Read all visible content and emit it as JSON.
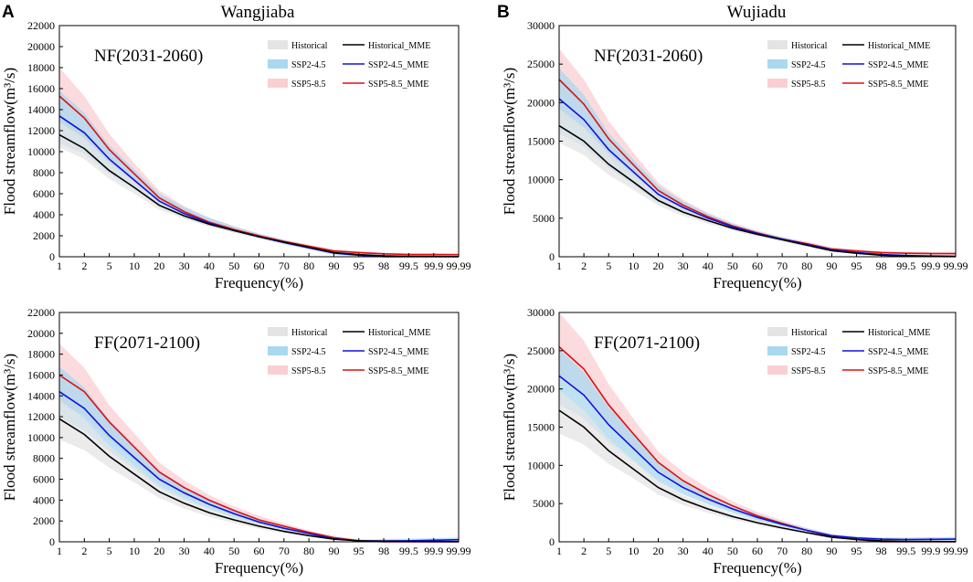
{
  "figure": {
    "panel_letters": [
      "A",
      "B"
    ],
    "stations": [
      "Wangjiaba",
      "Wujiadu"
    ]
  },
  "legend": {
    "band_labels": [
      "Historical",
      "SSP2-4.5",
      "SSP5-8.5"
    ],
    "line_labels": [
      "Historical_MME",
      "SSP2-4.5_MME",
      "SSP5-8.5_MME"
    ]
  },
  "colors": {
    "historical_band": "#e4e4e4",
    "ssp245_band": "#a9d8ef",
    "ssp585_band": "#f9cfd3",
    "historical_line": "#000000",
    "ssp245_line": "#1010dd",
    "ssp585_line": "#dd1010"
  },
  "chart_data": [
    {
      "type": "line",
      "id": "wangjiaba-nf",
      "station": "Wangjiaba",
      "period_label": "NF(2031-2060)",
      "xlabel": "Frequency(%)",
      "ylabel": "Flood streamflow(m³/s)",
      "x_ticks": [
        "1",
        "2",
        "5",
        "10",
        "20",
        "30",
        "40",
        "50",
        "60",
        "70",
        "80",
        "90",
        "95",
        "98",
        "99.5",
        "99.9",
        "99.99"
      ],
      "x": [
        1,
        2,
        5,
        10,
        20,
        30,
        40,
        50,
        60,
        70,
        80,
        90,
        95,
        98,
        99.5,
        99.9,
        99.99
      ],
      "ylim": [
        0,
        22000
      ],
      "y_ticks": [
        0,
        2000,
        4000,
        6000,
        8000,
        10000,
        12000,
        14000,
        16000,
        18000,
        20000,
        22000
      ],
      "series": [
        {
          "name": "Historical_MME",
          "band": "Historical",
          "values": [
            11600,
            10300,
            8200,
            6600,
            4900,
            3900,
            3100,
            2500,
            1900,
            1400,
            900,
            400,
            200,
            80,
            40,
            30,
            20
          ],
          "band_lower": [
            10400,
            9300,
            7400,
            6000,
            4500,
            3600,
            2900,
            2300,
            1700,
            1250,
            800,
            330,
            160,
            60,
            30,
            20,
            10
          ],
          "band_upper": [
            12800,
            11300,
            9000,
            7200,
            5300,
            4200,
            3300,
            2700,
            2100,
            1550,
            1000,
            470,
            250,
            110,
            60,
            45,
            35
          ]
        },
        {
          "name": "SSP2-4.5_MME",
          "band": "SSP2-4.5",
          "values": [
            13400,
            11800,
            9300,
            7300,
            5300,
            4100,
            3200,
            2500,
            1900,
            1350,
            850,
            350,
            150,
            0,
            0,
            0,
            0
          ],
          "band_lower": [
            10800,
            9800,
            7900,
            6400,
            4800,
            3700,
            2900,
            2300,
            1700,
            1200,
            700,
            200,
            60,
            0,
            0,
            0,
            0
          ],
          "band_upper": [
            15800,
            13700,
            10600,
            8300,
            6000,
            4700,
            3700,
            2900,
            2200,
            1600,
            1050,
            550,
            320,
            180,
            120,
            100,
            80
          ]
        },
        {
          "name": "SSP5-8.5_MME",
          "band": "SSP5-8.5",
          "values": [
            15300,
            13200,
            10200,
            7900,
            5600,
            4300,
            3300,
            2600,
            2000,
            1450,
            1000,
            550,
            400,
            280,
            220,
            210,
            200
          ],
          "band_lower": [
            12400,
            11000,
            8700,
            6900,
            5000,
            3900,
            3000,
            2400,
            1800,
            1300,
            850,
            420,
            280,
            170,
            120,
            110,
            100
          ],
          "band_upper": [
            18000,
            15300,
            11700,
            8900,
            6300,
            4800,
            3700,
            2900,
            2200,
            1650,
            1150,
            700,
            520,
            400,
            340,
            320,
            300
          ]
        }
      ]
    },
    {
      "type": "line",
      "id": "wujiadu-nf",
      "station": "Wujiadu",
      "period_label": "NF(2031-2060)",
      "xlabel": "Frequency(%)",
      "ylabel": "Flood streamflow(m³/s)",
      "x_ticks": [
        "1",
        "2",
        "5",
        "10",
        "20",
        "30",
        "40",
        "50",
        "60",
        "70",
        "80",
        "90",
        "95",
        "98",
        "99.5",
        "99.9",
        "99.99"
      ],
      "x": [
        1,
        2,
        5,
        10,
        20,
        30,
        40,
        50,
        60,
        70,
        80,
        90,
        95,
        98,
        99.5,
        99.9,
        99.99
      ],
      "ylim": [
        0,
        30000
      ],
      "y_ticks": [
        0,
        5000,
        10000,
        15000,
        20000,
        25000,
        30000
      ],
      "series": [
        {
          "name": "Historical_MME",
          "band": "Historical",
          "values": [
            17000,
            15000,
            12000,
            9700,
            7300,
            5800,
            4700,
            3700,
            2900,
            2200,
            1500,
            800,
            450,
            200,
            80,
            40,
            20
          ],
          "band_lower": [
            14800,
            13200,
            10600,
            8700,
            6600,
            5300,
            4300,
            3400,
            2600,
            2000,
            1300,
            650,
            350,
            130,
            40,
            20,
            10
          ],
          "band_upper": [
            19200,
            16800,
            13400,
            10700,
            8000,
            6300,
            5100,
            4000,
            3200,
            2400,
            1700,
            950,
            550,
            270,
            130,
            70,
            40
          ]
        },
        {
          "name": "SSP2-4.5_MME",
          "band": "SSP2-4.5",
          "values": [
            20500,
            17800,
            13900,
            11000,
            8100,
            6400,
            5000,
            3900,
            3000,
            2300,
            1600,
            900,
            550,
            280,
            150,
            100,
            50
          ],
          "band_lower": [
            16000,
            14300,
            11500,
            9300,
            7000,
            5600,
            4500,
            3500,
            2700,
            2000,
            1300,
            650,
            350,
            150,
            50,
            20,
            0
          ],
          "band_upper": [
            24500,
            21000,
            16000,
            12600,
            9200,
            7200,
            5600,
            4300,
            3300,
            2500,
            1800,
            1100,
            750,
            450,
            300,
            250,
            200
          ]
        },
        {
          "name": "SSP5-8.5_MME",
          "band": "SSP5-8.5",
          "values": [
            23000,
            19800,
            15300,
            11900,
            8600,
            6700,
            5200,
            4000,
            3100,
            2300,
            1700,
            1000,
            750,
            550,
            450,
            420,
            400
          ],
          "band_lower": [
            18500,
            16300,
            12900,
            10200,
            7500,
            5900,
            4600,
            3600,
            2800,
            2100,
            1450,
            800,
            550,
            380,
            300,
            270,
            250
          ],
          "band_upper": [
            27000,
            23000,
            17600,
            13500,
            9600,
            7400,
            5700,
            4400,
            3400,
            2600,
            1950,
            1250,
            950,
            750,
            650,
            620,
            600
          ]
        }
      ]
    },
    {
      "type": "line",
      "id": "wangjiaba-ff",
      "station": "Wangjiaba",
      "period_label": "FF(2071-2100)",
      "xlabel": "Frequency(%)",
      "ylabel": "Flood streamflow(m³/s)",
      "x_ticks": [
        "1",
        "2",
        "5",
        "10",
        "20",
        "30",
        "40",
        "50",
        "60",
        "70",
        "80",
        "90",
        "95",
        "98",
        "99.5",
        "99.9",
        "99.99"
      ],
      "x": [
        1,
        2,
        5,
        10,
        20,
        30,
        40,
        50,
        60,
        70,
        80,
        90,
        95,
        98,
        99.5,
        99.9,
        99.99
      ],
      "ylim": [
        0,
        22000
      ],
      "y_ticks": [
        0,
        2000,
        4000,
        6000,
        8000,
        10000,
        12000,
        14000,
        16000,
        18000,
        20000,
        22000
      ],
      "series": [
        {
          "name": "Historical_MME",
          "band": "Historical",
          "values": [
            11800,
            10300,
            8200,
            6500,
            4800,
            3700,
            2800,
            2100,
            1500,
            1000,
            600,
            250,
            100,
            50,
            30,
            20,
            20
          ],
          "band_lower": [
            9800,
            8800,
            7100,
            5700,
            4200,
            3200,
            2400,
            1800,
            1250,
            800,
            450,
            150,
            50,
            20,
            10,
            10,
            10
          ],
          "band_upper": [
            13600,
            11800,
            9200,
            7300,
            5400,
            4200,
            3200,
            2400,
            1750,
            1200,
            750,
            350,
            170,
            100,
            70,
            60,
            50
          ]
        },
        {
          "name": "SSP2-4.5_MME",
          "band": "SSP2-4.5",
          "values": [
            14400,
            12800,
            10200,
            8100,
            6000,
            4700,
            3600,
            2700,
            1900,
            1300,
            800,
            300,
            100,
            80,
            100,
            150,
            200
          ],
          "band_lower": [
            11900,
            10700,
            8700,
            7000,
            5200,
            4000,
            3100,
            2300,
            1600,
            1050,
            600,
            200,
            80,
            60,
            70,
            80,
            100
          ],
          "band_upper": [
            16800,
            14800,
            11700,
            9200,
            6800,
            5300,
            4100,
            3100,
            2200,
            1500,
            950,
            400,
            200,
            250,
            300,
            350,
            400
          ]
        },
        {
          "name": "SSP5-8.5_MME",
          "band": "SSP5-8.5",
          "values": [
            16000,
            14400,
            11500,
            9100,
            6700,
            5200,
            4000,
            3000,
            2100,
            1500,
            900,
            400,
            100,
            0,
            0,
            0,
            0
          ],
          "band_lower": [
            13400,
            12100,
            9800,
            7800,
            5800,
            4500,
            3500,
            2600,
            1800,
            1250,
            700,
            250,
            50,
            0,
            0,
            0,
            0
          ],
          "band_upper": [
            19000,
            16700,
            13100,
            10400,
            7600,
            5900,
            4500,
            3400,
            2500,
            1750,
            1100,
            550,
            250,
            100,
            60,
            40,
            20
          ]
        }
      ]
    },
    {
      "type": "line",
      "id": "wujiadu-ff",
      "station": "Wujiadu",
      "period_label": "FF(2071-2100)",
      "xlabel": "Frequency(%)",
      "ylabel": "Flood streamflow(m³/s)",
      "x_ticks": [
        "1",
        "2",
        "5",
        "10",
        "20",
        "30",
        "40",
        "50",
        "60",
        "70",
        "80",
        "90",
        "95",
        "98",
        "99.5",
        "99.9",
        "99.99"
      ],
      "x": [
        1,
        2,
        5,
        10,
        20,
        30,
        40,
        50,
        60,
        70,
        80,
        90,
        95,
        98,
        99.5,
        99.9,
        99.99
      ],
      "ylim": [
        0,
        30000
      ],
      "y_ticks": [
        0,
        5000,
        10000,
        15000,
        20000,
        25000,
        30000
      ],
      "series": [
        {
          "name": "Historical_MME",
          "band": "Historical",
          "values": [
            17200,
            15000,
            11900,
            9500,
            7100,
            5500,
            4300,
            3300,
            2500,
            1800,
            1200,
            600,
            300,
            130,
            60,
            30,
            20
          ],
          "band_lower": [
            14200,
            12700,
            10200,
            8300,
            6200,
            4800,
            3800,
            2900,
            2200,
            1600,
            1000,
            450,
            200,
            80,
            30,
            20,
            10
          ],
          "band_upper": [
            19800,
            17200,
            13500,
            10700,
            7900,
            6100,
            4800,
            3700,
            2800,
            2000,
            1400,
            750,
            400,
            200,
            100,
            60,
            40
          ]
        },
        {
          "name": "SSP2-4.5_MME",
          "band": "SSP2-4.5",
          "values": [
            21700,
            19200,
            15300,
            12200,
            9100,
            7100,
            5600,
            4300,
            3200,
            2300,
            1500,
            800,
            500,
            350,
            300,
            320,
            350
          ],
          "band_lower": [
            18000,
            16100,
            13000,
            10500,
            7900,
            6200,
            4900,
            3800,
            2800,
            2000,
            1300,
            650,
            350,
            200,
            150,
            150,
            150
          ],
          "band_upper": [
            25200,
            22200,
            17600,
            14000,
            10400,
            8100,
            6300,
            4800,
            3600,
            2600,
            1750,
            1000,
            700,
            550,
            550,
            600,
            650
          ]
        },
        {
          "name": "SSP5-8.5_MME",
          "band": "SSP5-8.5",
          "values": [
            25500,
            22600,
            17900,
            14100,
            10400,
            8000,
            6200,
            4700,
            3400,
            2400,
            1500,
            700,
            300,
            0,
            0,
            0,
            0
          ],
          "band_lower": [
            21500,
            19200,
            15300,
            12200,
            9000,
            7000,
            5400,
            4100,
            3000,
            2100,
            1300,
            550,
            200,
            0,
            0,
            0,
            0
          ],
          "band_upper": [
            30000,
            26300,
            20600,
            16100,
            11800,
            9100,
            7000,
            5300,
            3900,
            2800,
            1800,
            1000,
            600,
            300,
            100,
            50,
            20
          ]
        }
      ]
    }
  ]
}
